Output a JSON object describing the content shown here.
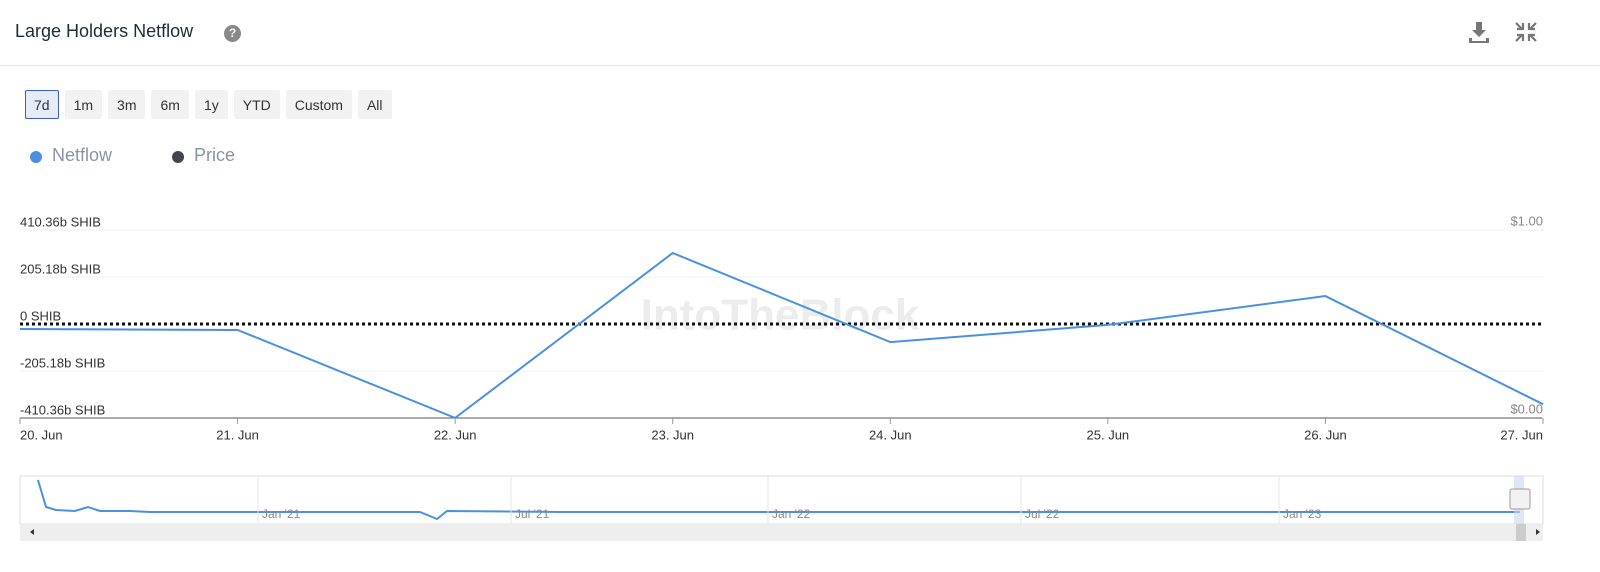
{
  "chart_data": {
    "type": "line",
    "title": "Large Holders Netflow",
    "watermark": "IntoTheBlock",
    "range_buttons": [
      "7d",
      "1m",
      "3m",
      "6m",
      "1y",
      "YTD",
      "Custom",
      "All"
    ],
    "active_range": 0,
    "categories": [
      "20. Jun",
      "21. Jun",
      "22. Jun",
      "23. Jun",
      "24. Jun",
      "25. Jun",
      "26. Jun",
      "27. Jun"
    ],
    "series": [
      {
        "name": "Netflow",
        "color": "#4a90e2",
        "values": [
          -22,
          -26,
          -410,
          310,
          -79,
          -4,
          122,
          -350
        ]
      },
      {
        "name": "Price",
        "color": "#43464d",
        "axis": "y2",
        "values": [
          null,
          null,
          null,
          null,
          null,
          null,
          null,
          null
        ]
      }
    ],
    "ylim": [
      -410.36,
      410.36
    ],
    "yticks": [
      {
        "value": 410.36,
        "label": "410.36b SHIB"
      },
      {
        "value": 205.18,
        "label": "205.18b SHIB"
      },
      {
        "value": 0,
        "label": "0 SHIB"
      },
      {
        "value": -205.18,
        "label": "-205.18b SHIB"
      },
      {
        "value": -410.36,
        "label": "-410.36b SHIB"
      }
    ],
    "y2lim": [
      0,
      1
    ],
    "y2ticks": [
      {
        "value": 1,
        "label": "$1.00"
      },
      {
        "value": 0,
        "label": "$0.00"
      }
    ],
    "grid": true,
    "zero_line": true,
    "navigator_labels": [
      "Jan '21",
      "Jul '21",
      "Jan '22",
      "Jul '22",
      "Jan '23"
    ]
  }
}
